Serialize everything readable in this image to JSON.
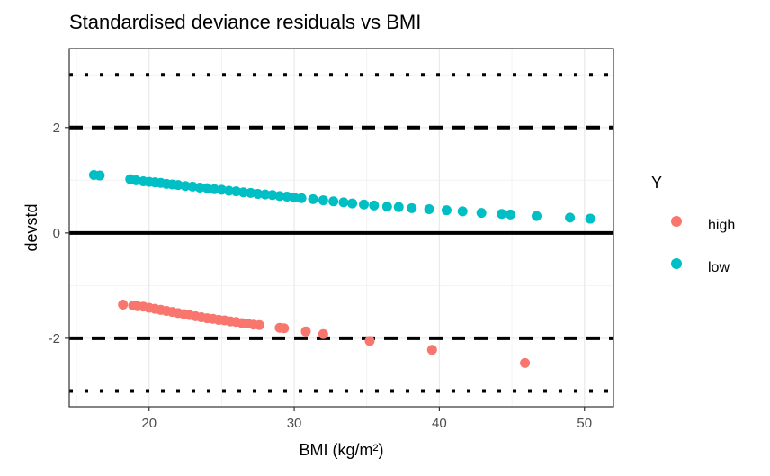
{
  "chart_data": {
    "type": "scatter",
    "title": "Standardised deviance residuals vs BMI",
    "xlabel": "BMI (kg/m²)",
    "ylabel": "devstd",
    "xlim": [
      14.5,
      52.0
    ],
    "ylim": [
      -3.3,
      3.5
    ],
    "x_ticks": [
      20,
      30,
      40,
      50
    ],
    "x_tick_labels": [
      "20",
      "30",
      "40",
      "50"
    ],
    "y_ticks": [
      -2,
      0,
      2
    ],
    "y_tick_labels": [
      "-2",
      "0",
      "2"
    ],
    "grid": true,
    "legend": {
      "title": "Y",
      "placement": "right"
    },
    "reference_lines": [
      {
        "y": 3,
        "style": "dotted"
      },
      {
        "y": 2,
        "style": "dashed"
      },
      {
        "y": 0,
        "style": "solid"
      },
      {
        "y": -2,
        "style": "dashed"
      },
      {
        "y": -3,
        "style": "dotted"
      }
    ],
    "series": [
      {
        "name": "high",
        "color": "#F8766D",
        "points": [
          [
            18.2,
            -1.36
          ],
          [
            18.9,
            -1.38
          ],
          [
            19.2,
            -1.39
          ],
          [
            19.6,
            -1.4
          ],
          [
            20.0,
            -1.42
          ],
          [
            20.4,
            -1.44
          ],
          [
            20.8,
            -1.46
          ],
          [
            21.2,
            -1.48
          ],
          [
            21.6,
            -1.5
          ],
          [
            22.0,
            -1.52
          ],
          [
            22.4,
            -1.54
          ],
          [
            22.8,
            -1.56
          ],
          [
            23.2,
            -1.58
          ],
          [
            23.6,
            -1.6
          ],
          [
            24.0,
            -1.62
          ],
          [
            24.4,
            -1.63
          ],
          [
            24.8,
            -1.65
          ],
          [
            25.2,
            -1.66
          ],
          [
            25.6,
            -1.68
          ],
          [
            26.0,
            -1.69
          ],
          [
            26.4,
            -1.71
          ],
          [
            26.8,
            -1.72
          ],
          [
            27.2,
            -1.74
          ],
          [
            27.6,
            -1.75
          ],
          [
            29.0,
            -1.8
          ],
          [
            29.3,
            -1.81
          ],
          [
            30.8,
            -1.87
          ],
          [
            32.0,
            -1.92
          ],
          [
            35.2,
            -2.05
          ],
          [
            39.5,
            -2.22
          ],
          [
            45.9,
            -2.47
          ]
        ]
      },
      {
        "name": "low",
        "color": "#00BFC4",
        "points": [
          [
            16.2,
            1.1
          ],
          [
            16.6,
            1.09
          ],
          [
            18.7,
            1.02
          ],
          [
            19.1,
            1.0
          ],
          [
            19.6,
            0.98
          ],
          [
            20.0,
            0.97
          ],
          [
            20.4,
            0.96
          ],
          [
            20.8,
            0.95
          ],
          [
            21.2,
            0.93
          ],
          [
            21.6,
            0.92
          ],
          [
            22.0,
            0.91
          ],
          [
            22.5,
            0.89
          ],
          [
            23.0,
            0.88
          ],
          [
            23.5,
            0.86
          ],
          [
            24.0,
            0.85
          ],
          [
            24.5,
            0.83
          ],
          [
            25.0,
            0.82
          ],
          [
            25.5,
            0.8
          ],
          [
            26.0,
            0.79
          ],
          [
            26.5,
            0.77
          ],
          [
            27.0,
            0.76
          ],
          [
            27.5,
            0.74
          ],
          [
            28.0,
            0.73
          ],
          [
            28.5,
            0.72
          ],
          [
            29.0,
            0.7
          ],
          [
            29.5,
            0.69
          ],
          [
            30.0,
            0.67
          ],
          [
            30.5,
            0.66
          ],
          [
            31.3,
            0.64
          ],
          [
            32.0,
            0.62
          ],
          [
            32.7,
            0.6
          ],
          [
            33.4,
            0.58
          ],
          [
            34.0,
            0.56
          ],
          [
            34.8,
            0.54
          ],
          [
            35.5,
            0.52
          ],
          [
            36.4,
            0.5
          ],
          [
            37.2,
            0.49
          ],
          [
            38.1,
            0.47
          ],
          [
            39.3,
            0.45
          ],
          [
            40.5,
            0.43
          ],
          [
            41.6,
            0.41
          ],
          [
            42.9,
            0.38
          ],
          [
            44.3,
            0.36
          ],
          [
            44.9,
            0.35
          ],
          [
            46.7,
            0.32
          ],
          [
            49.0,
            0.29
          ],
          [
            50.4,
            0.27
          ]
        ]
      }
    ]
  }
}
